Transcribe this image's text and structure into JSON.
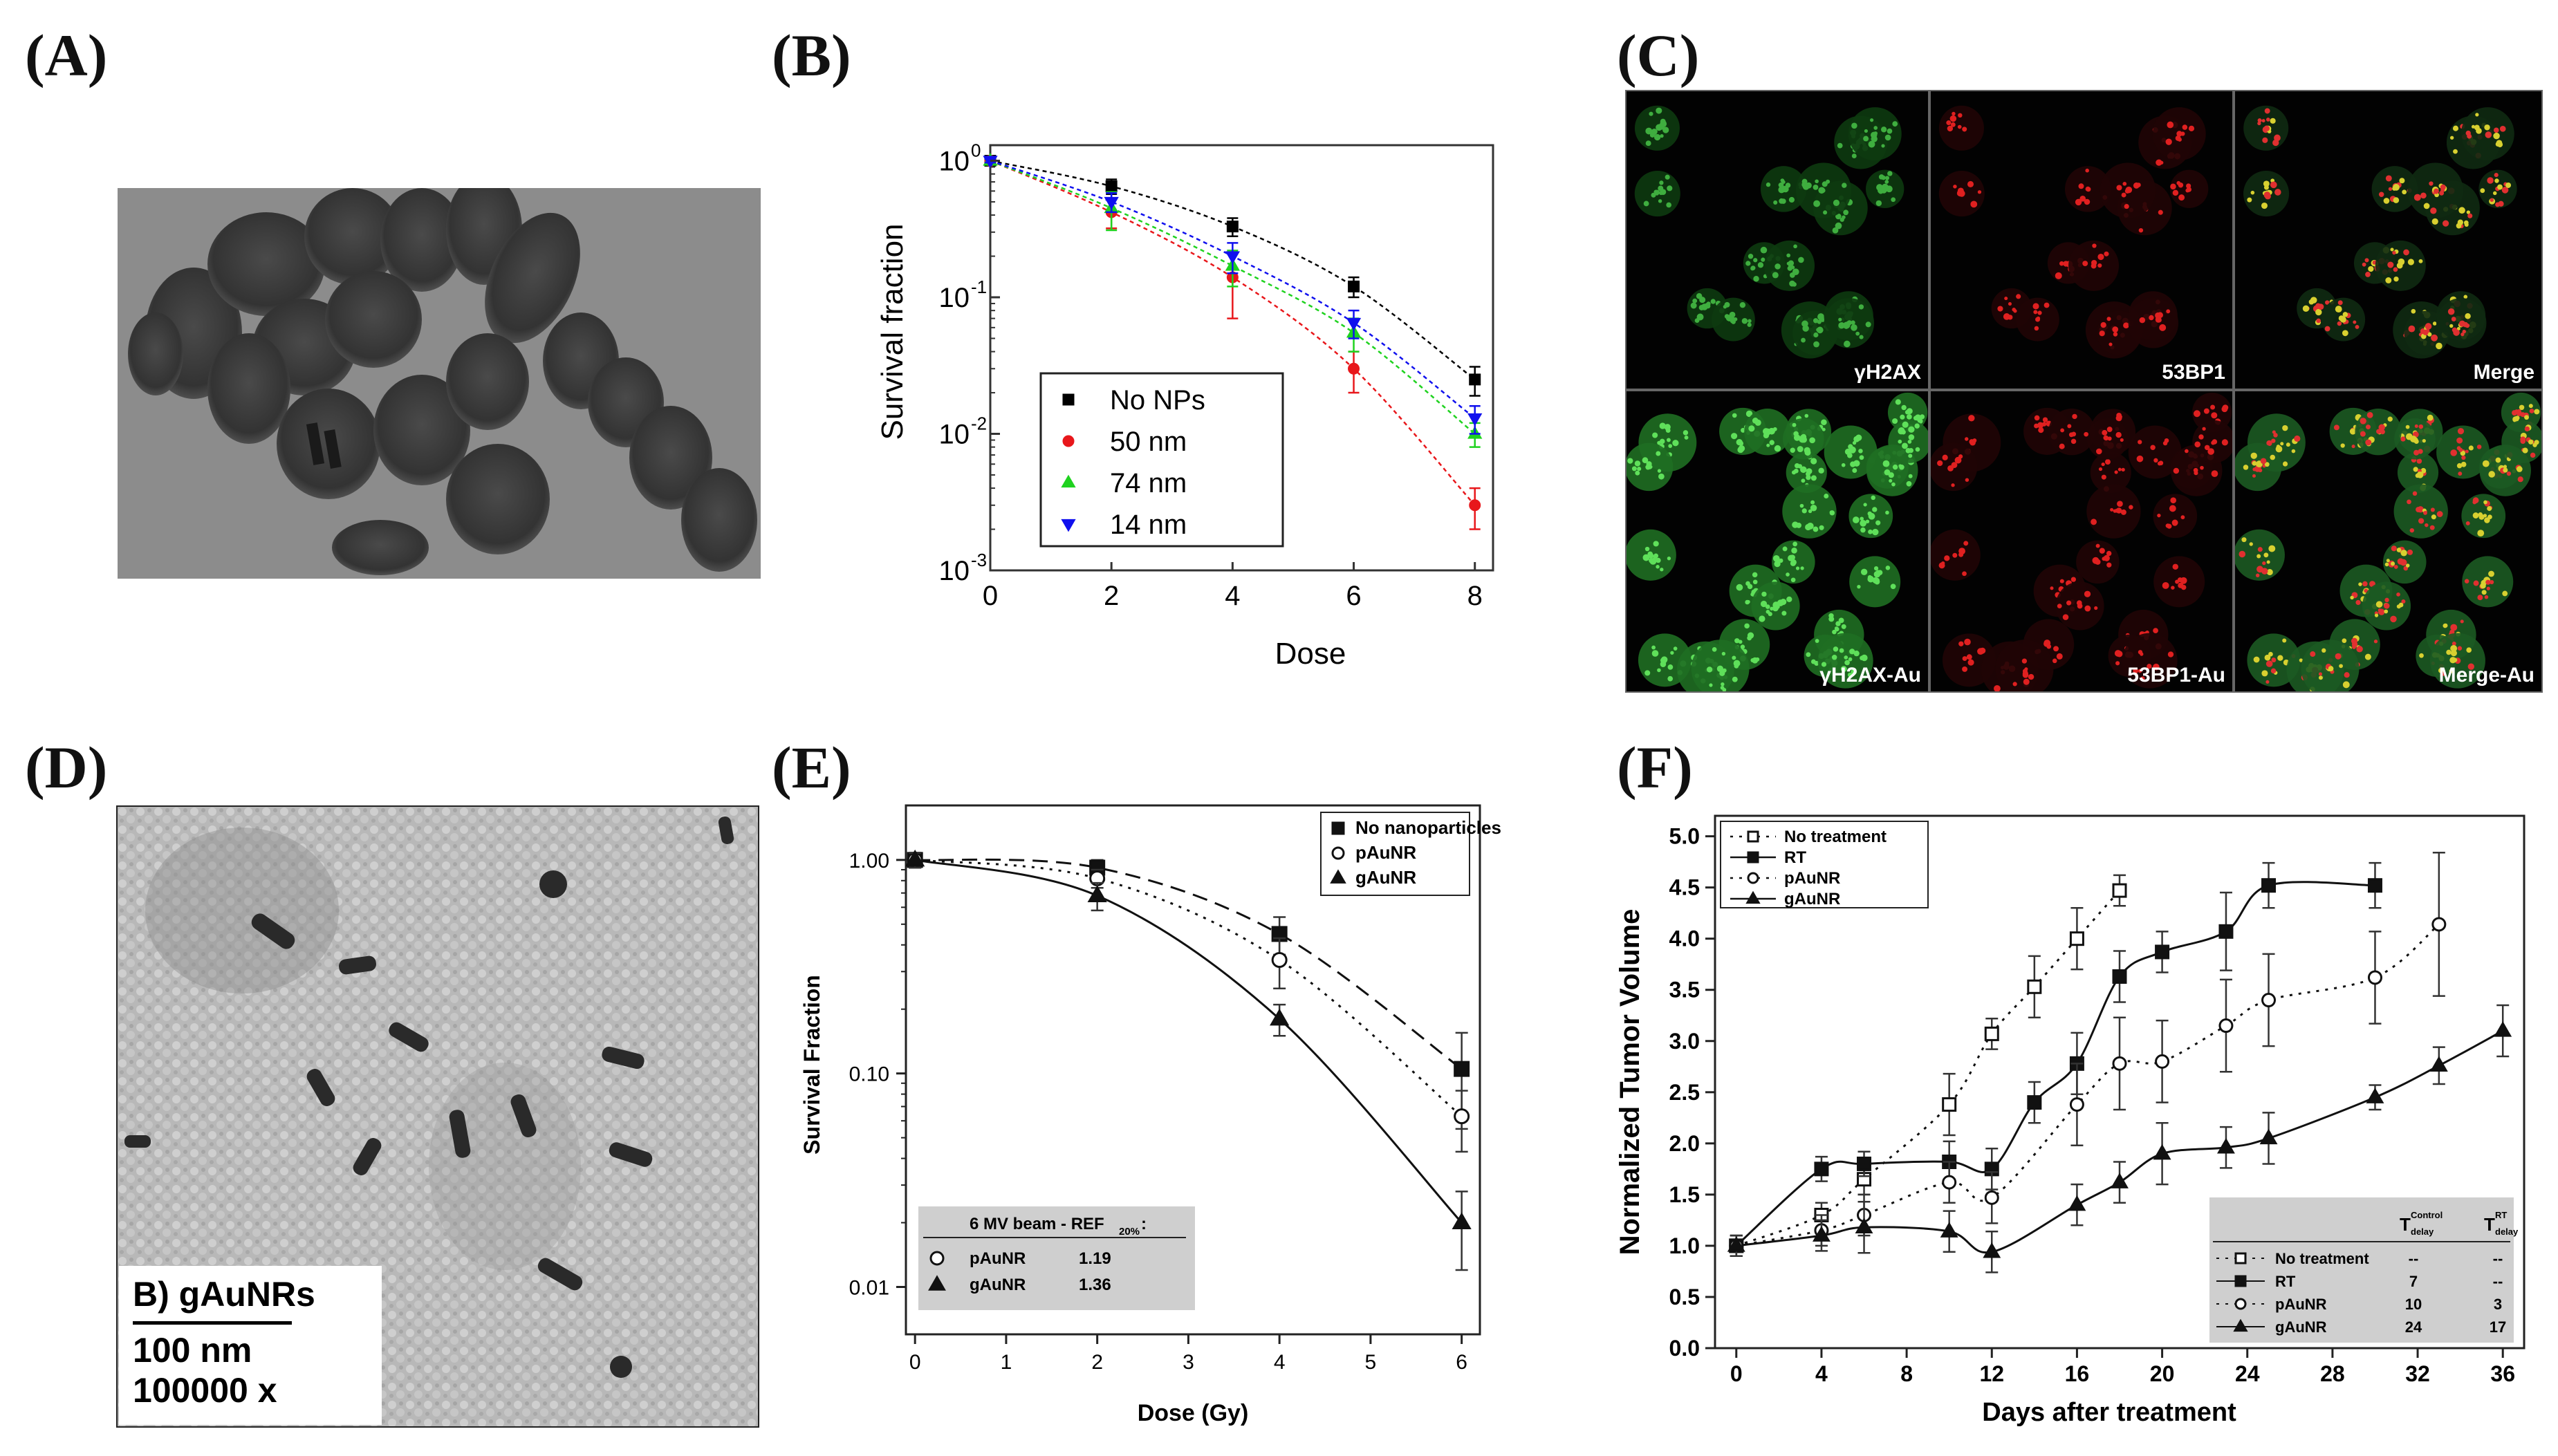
{
  "panels": {
    "a": "(A)",
    "b": "(B)",
    "c": "(C)",
    "d": "(D)",
    "e": "(E)",
    "f": "(F)"
  },
  "microscopy_c": {
    "tiles": [
      "γH2AX",
      "53BP1",
      "Merge",
      "γH2AX-Au",
      "53BP1-Au",
      "Merge-Au"
    ]
  },
  "tem_d": {
    "title": "B) gAuNRs",
    "scale": "100 nm",
    "magnification": "100000 x"
  },
  "chart_data": [
    {
      "id": "B",
      "type": "scatter",
      "xlabel": "Dose",
      "ylabel": "Survival fraction",
      "x_ticks": [
        "0",
        "2",
        "4",
        "6",
        "8"
      ],
      "y_ticks": [
        "10",
        "10",
        "10",
        "10"
      ],
      "y_tick_exponents": [
        "0",
        "-1",
        "-2",
        "-3"
      ],
      "xlim": [
        0,
        8.3
      ],
      "ylim": [
        0.001,
        1.3
      ],
      "y_scale": "log",
      "legend_position": "center",
      "series": [
        {
          "name": "No NPs",
          "color": "#000000",
          "marker": "square",
          "x": [
            0,
            2,
            4,
            6,
            8
          ],
          "y": [
            1.0,
            0.65,
            0.33,
            0.12,
            0.025
          ],
          "err": [
            0.03,
            0.08,
            0.05,
            0.02,
            0.006
          ]
        },
        {
          "name": "50 nm",
          "color": "#e8171b",
          "marker": "circle",
          "x": [
            0,
            2,
            4,
            6,
            8
          ],
          "y": [
            1.0,
            0.42,
            0.14,
            0.03,
            0.003
          ],
          "err": [
            0.03,
            0.1,
            0.07,
            0.01,
            0.001
          ]
        },
        {
          "name": "74 nm",
          "color": "#1fd21f",
          "marker": "triangle-up",
          "x": [
            0,
            2,
            4,
            6,
            8
          ],
          "y": [
            1.0,
            0.45,
            0.17,
            0.055,
            0.01
          ],
          "err": [
            0.03,
            0.14,
            0.05,
            0.015,
            0.002
          ]
        },
        {
          "name": "14 nm",
          "color": "#1010ee",
          "marker": "triangle-down",
          "x": [
            0,
            2,
            4,
            6,
            8
          ],
          "y": [
            1.0,
            0.5,
            0.2,
            0.065,
            0.013
          ],
          "err": [
            0.03,
            0.08,
            0.05,
            0.015,
            0.003
          ]
        }
      ]
    },
    {
      "id": "E",
      "type": "scatter",
      "xlabel": "Dose (Gy)",
      "ylabel": "Survival Fraction",
      "x_ticks": [
        "0",
        "1",
        "2",
        "3",
        "4",
        "5",
        "6"
      ],
      "y_ticks": [
        "1.00",
        "0.10",
        "0.01"
      ],
      "xlim": [
        -0.1,
        6.2
      ],
      "ylim": [
        0.006,
        1.8
      ],
      "y_scale": "log",
      "legend_position": "top-right",
      "series": [
        {
          "name": "No nanoparticles",
          "marker": "filled-square",
          "line": "dashed",
          "x": [
            0,
            2,
            4,
            6
          ],
          "y": [
            1.0,
            0.92,
            0.45,
            0.105
          ],
          "err": [
            0.08,
            0.08,
            0.09,
            0.05
          ]
        },
        {
          "name": "pAuNR",
          "marker": "open-circle",
          "line": "dotted",
          "x": [
            0,
            2,
            4,
            6
          ],
          "y": [
            1.0,
            0.82,
            0.34,
            0.063
          ],
          "err": [
            0.08,
            0.08,
            0.09,
            0.02
          ]
        },
        {
          "name": "gAuNR",
          "marker": "filled-triangle",
          "line": "solid",
          "x": [
            0,
            2,
            4,
            6
          ],
          "y": [
            1.0,
            0.68,
            0.18,
            0.02
          ],
          "err": [
            0.08,
            0.1,
            0.03,
            0.008
          ]
        }
      ],
      "inset_table": {
        "title": "6 MV beam - REF",
        "title_sub": "20%",
        "title_suffix": ":",
        "rows": [
          [
            "pAuNR",
            "1.19"
          ],
          [
            "gAuNR",
            "1.36"
          ]
        ]
      }
    },
    {
      "id": "F",
      "type": "line",
      "xlabel": "Days after treatment",
      "ylabel": "Normalized Tumor Volume",
      "x_ticks": [
        "0",
        "4",
        "8",
        "12",
        "16",
        "20",
        "24",
        "28",
        "32",
        "36"
      ],
      "y_ticks": [
        "0.0",
        "0.5",
        "1.0",
        "1.5",
        "2.0",
        "2.5",
        "3.0",
        "3.5",
        "4.0",
        "4.5",
        "5.0"
      ],
      "xlim": [
        -1,
        37
      ],
      "ylim": [
        0,
        5.2
      ],
      "legend_position": "top-left",
      "series": [
        {
          "name": "No treatment",
          "marker": "open-square",
          "line": "dotted",
          "x": [
            0,
            4,
            6,
            10,
            12,
            14,
            16,
            18
          ],
          "y": [
            1.0,
            1.3,
            1.65,
            2.38,
            3.07,
            3.53,
            4.0,
            4.47
          ],
          "err": [
            0.1,
            0.12,
            0.15,
            0.3,
            0.15,
            0.3,
            0.3,
            0.15
          ]
        },
        {
          "name": "RT",
          "marker": "filled-square",
          "line": "solid",
          "x": [
            0,
            4,
            6,
            10,
            12,
            14,
            16,
            18,
            20,
            23,
            25,
            30
          ],
          "y": [
            1.0,
            1.75,
            1.8,
            1.82,
            1.75,
            2.4,
            2.78,
            3.63,
            3.87,
            4.07,
            4.52,
            4.52
          ],
          "err": [
            0.1,
            0.12,
            0.12,
            0.2,
            0.2,
            0.2,
            0.3,
            0.25,
            0.2,
            0.38,
            0.22,
            0.22
          ]
        },
        {
          "name": "pAuNR",
          "marker": "open-circle",
          "line": "dotted",
          "x": [
            0,
            4,
            6,
            10,
            12,
            16,
            18,
            20,
            23,
            25,
            30,
            33
          ],
          "y": [
            1.0,
            1.15,
            1.3,
            1.62,
            1.47,
            2.38,
            2.78,
            2.8,
            3.15,
            3.4,
            3.62,
            4.14
          ],
          "err": [
            0.1,
            0.15,
            0.2,
            0.2,
            0.25,
            0.4,
            0.45,
            0.4,
            0.45,
            0.45,
            0.45,
            0.7
          ]
        },
        {
          "name": "gAuNR",
          "marker": "filled-triangle",
          "line": "solid",
          "x": [
            0,
            4,
            6,
            10,
            12,
            16,
            18,
            20,
            23,
            25,
            30,
            33,
            36
          ],
          "y": [
            1.0,
            1.1,
            1.18,
            1.14,
            0.94,
            1.4,
            1.62,
            1.9,
            1.96,
            2.05,
            2.45,
            2.76,
            3.1
          ],
          "err": [
            0.1,
            0.15,
            0.25,
            0.2,
            0.2,
            0.2,
            0.2,
            0.3,
            0.2,
            0.25,
            0.12,
            0.18,
            0.25
          ]
        }
      ],
      "inset_table": {
        "headers": [
          "",
          "T",
          "T"
        ],
        "header_sups": [
          "",
          "Control",
          "RT"
        ],
        "header_subs": [
          "",
          "delay",
          "delay"
        ],
        "rows": [
          [
            "No treatment",
            "--",
            "--"
          ],
          [
            "RT",
            "7",
            "--"
          ],
          [
            "pAuNR",
            "10",
            "3"
          ],
          [
            "gAuNR",
            "24",
            "17"
          ]
        ]
      }
    }
  ]
}
